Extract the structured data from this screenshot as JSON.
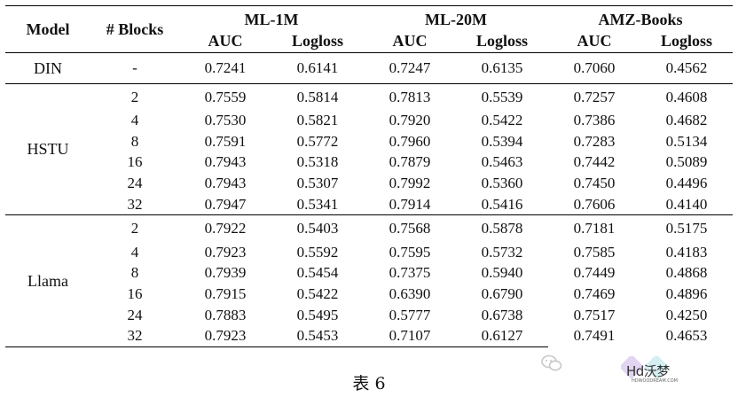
{
  "table": {
    "header": {
      "model": "Model",
      "blocks": "# Blocks",
      "datasets": [
        "ML-1M",
        "ML-20M",
        "AMZ-Books"
      ],
      "metrics": [
        "AUC",
        "Logloss",
        "AUC",
        "Logloss",
        "AUC",
        "Logloss"
      ]
    },
    "din": {
      "model": "DIN",
      "blocks": "-",
      "values": [
        "0.7241",
        "0.6141",
        "0.7247",
        "0.6135",
        "0.7060",
        "0.4562"
      ]
    },
    "hstu": {
      "model": "HSTU",
      "rows": [
        {
          "blocks": "2",
          "values": [
            "0.7559",
            "0.5814",
            "0.7813",
            "0.5539",
            "0.7257",
            "0.4608"
          ]
        },
        {
          "blocks": "4",
          "values": [
            "0.7530",
            "0.5821",
            "0.7920",
            "0.5422",
            "0.7386",
            "0.4682"
          ]
        },
        {
          "blocks": "8",
          "values": [
            "0.7591",
            "0.5772",
            "0.7960",
            "0.5394",
            "0.7283",
            "0.5134"
          ]
        },
        {
          "blocks": "16",
          "values": [
            "0.7943",
            "0.5318",
            "0.7879",
            "0.5463",
            "0.7442",
            "0.5089"
          ]
        },
        {
          "blocks": "24",
          "values": [
            "0.7943",
            "0.5307",
            "0.7992",
            "0.5360",
            "0.7450",
            "0.4496"
          ]
        },
        {
          "blocks": "32",
          "values": [
            "0.7947",
            "0.5341",
            "0.7914",
            "0.5416",
            "0.7606",
            "0.4140"
          ]
        }
      ]
    },
    "llama": {
      "model": "Llama",
      "rows": [
        {
          "blocks": "2",
          "values": [
            "0.7922",
            "0.5403",
            "0.7568",
            "0.5878",
            "0.7181",
            "0.5175"
          ]
        },
        {
          "blocks": "4",
          "values": [
            "0.7923",
            "0.5592",
            "0.7595",
            "0.5732",
            "0.7585",
            "0.4183"
          ]
        },
        {
          "blocks": "8",
          "values": [
            "0.7939",
            "0.5454",
            "0.7375",
            "0.5940",
            "0.7449",
            "0.4868"
          ]
        },
        {
          "blocks": "16",
          "values": [
            "0.7915",
            "0.5422",
            "0.6390",
            "0.6790",
            "0.7469",
            "0.4896"
          ]
        },
        {
          "blocks": "24",
          "values": [
            "0.7883",
            "0.5495",
            "0.5777",
            "0.6738",
            "0.7517",
            "0.4250"
          ]
        },
        {
          "blocks": "32",
          "values": [
            "0.7923",
            "0.5453",
            "0.7107",
            "0.6127",
            "0.7491",
            "0.4653"
          ]
        }
      ]
    }
  },
  "caption": "表 6",
  "watermark": {
    "icon": "wechat-icon",
    "logo_text": "Hd沃梦",
    "logo_subtext": "HDWOODREAM.COM"
  }
}
